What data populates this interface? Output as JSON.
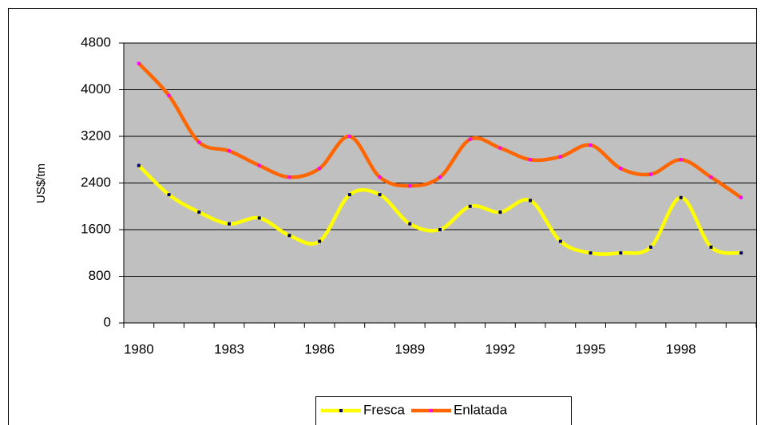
{
  "chart_data": {
    "type": "line",
    "y_label": "US$/tm",
    "categories": [
      "1980",
      null,
      null,
      "1983",
      null,
      null,
      "1986",
      null,
      null,
      "1989",
      null,
      null,
      "1992",
      null,
      null,
      "1995",
      null,
      null,
      "1998",
      null,
      null
    ],
    "series": [
      {
        "name": "Fresca",
        "color": "#ffff00",
        "marker_color": "#000066",
        "values": [
          2700,
          2200,
          1900,
          1700,
          1800,
          1500,
          1400,
          2200,
          2200,
          1700,
          1600,
          2000,
          1900,
          2100,
          1400,
          1200,
          1200,
          1300,
          2150,
          1300,
          1200
        ]
      },
      {
        "name": "Enlatada",
        "color": "#ff6600",
        "marker_color": "#ff00ff",
        "values": [
          4450,
          3900,
          3100,
          2950,
          2700,
          2500,
          2650,
          3200,
          2500,
          2350,
          2500,
          3150,
          3000,
          2800,
          2850,
          3050,
          2650,
          2550,
          2800,
          2500,
          2150
        ]
      }
    ],
    "ylim": [
      0,
      4800
    ],
    "yticks": [
      0,
      800,
      1600,
      2400,
      3200,
      4000,
      4800
    ],
    "grid": true,
    "plot_background": "#c0c0c0",
    "smooth": true,
    "legend": "bottom"
  }
}
